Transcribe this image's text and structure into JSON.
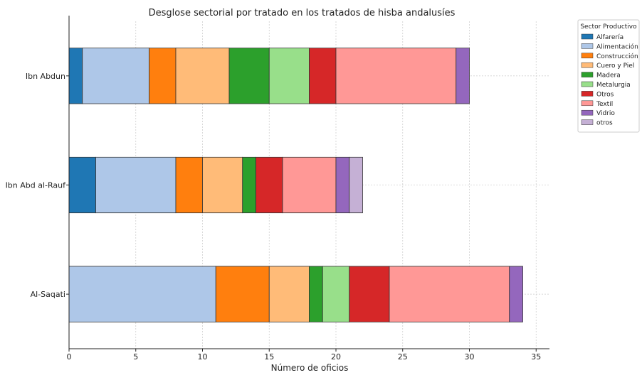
{
  "chart_data": {
    "type": "bar",
    "orientation": "horizontal",
    "stacked": true,
    "title": "Desglose sectorial por tratado en los tratados de hisba andalusíes",
    "xlabel": "Número de oficios",
    "ylabel": "",
    "xlim": [
      0,
      36
    ],
    "xticks": [
      0,
      5,
      10,
      15,
      20,
      25,
      30,
      35
    ],
    "grid": true,
    "legend_title": "Sector Productivo",
    "legend_position": "top-right",
    "categories": [
      "Ibn Abdun",
      "Ibn Abd al-Rauf",
      "Al-Saqati"
    ],
    "series": [
      {
        "name": "Alfarería",
        "color": "#1f77b4",
        "values": [
          1,
          2,
          0
        ]
      },
      {
        "name": "Alimentación",
        "color": "#aec7e8",
        "values": [
          5,
          6,
          11
        ]
      },
      {
        "name": "Construcción",
        "color": "#ff7f0e",
        "values": [
          2,
          2,
          4
        ]
      },
      {
        "name": "Cuero y Piel",
        "color": "#ffbb78",
        "values": [
          4,
          3,
          3
        ]
      },
      {
        "name": "Madera",
        "color": "#2ca02c",
        "values": [
          3,
          1,
          1
        ]
      },
      {
        "name": "Metalurgia",
        "color": "#98df8a",
        "values": [
          3,
          0,
          2
        ]
      },
      {
        "name": "Otros",
        "color": "#d62728",
        "values": [
          2,
          2,
          3
        ]
      },
      {
        "name": "Textil",
        "color": "#ff9896",
        "values": [
          9,
          4,
          9
        ]
      },
      {
        "name": "Vidrio",
        "color": "#9467bd",
        "values": [
          1,
          1,
          1
        ]
      },
      {
        "name": "otros",
        "color": "#c5b0d5",
        "values": [
          0,
          1,
          0
        ]
      }
    ]
  }
}
